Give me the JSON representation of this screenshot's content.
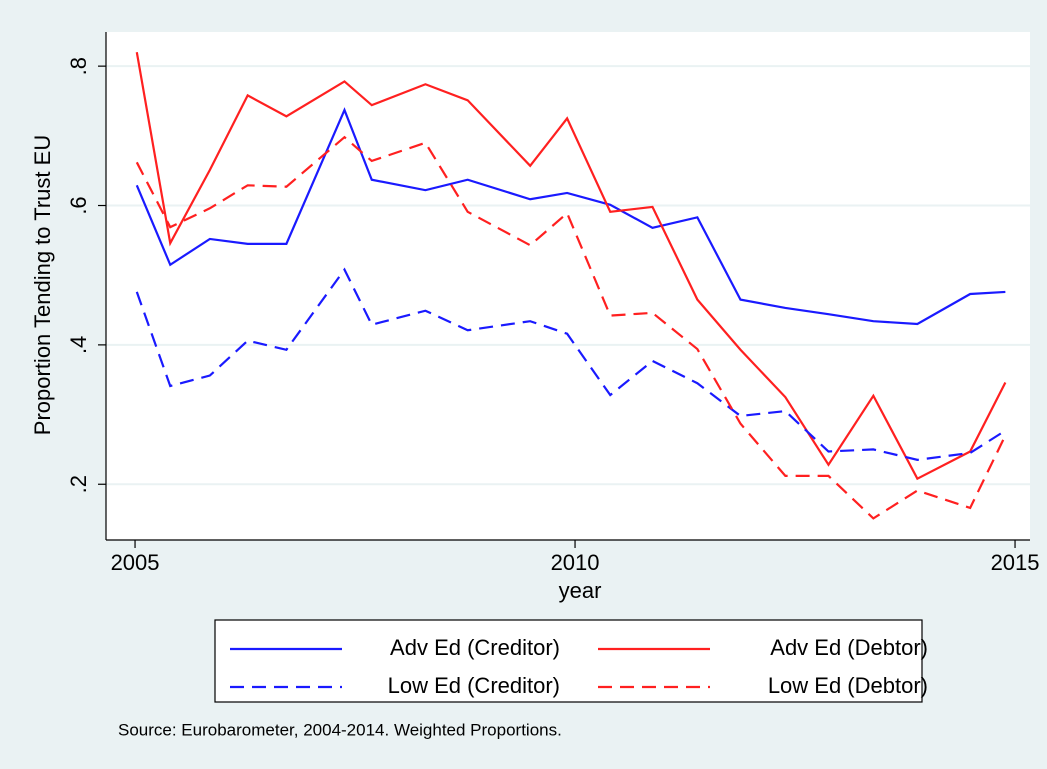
{
  "chart_data": {
    "type": "line",
    "x_label": "year",
    "y_label": "Proportion Tending to Trust EU",
    "note": "Source: Eurobarometer, 2004-2014. Weighted Proportions.",
    "x": [
      2005.02,
      2005.4,
      2005.85,
      2006.28,
      2006.72,
      2007.38,
      2007.69,
      2008.3,
      2008.78,
      2009.49,
      2009.91,
      2010.4,
      2010.88,
      2011.39,
      2011.88,
      2012.39,
      2012.88,
      2013.39,
      2013.89,
      2014.49,
      2014.89
    ],
    "series": [
      {
        "name": "Adv Ed (Creditor)",
        "color": "#1a1aff",
        "dash": false,
        "values": [
          0.629,
          0.515,
          0.552,
          0.545,
          0.545,
          0.737,
          0.637,
          0.622,
          0.637,
          0.609,
          0.618,
          0.601,
          0.568,
          0.583,
          0.465,
          0.453,
          0.444,
          0.434,
          0.43,
          0.473,
          0.476
        ]
      },
      {
        "name": "Adv Ed (Debtor)",
        "color": "#ff2020",
        "dash": false,
        "values": [
          0.82,
          0.546,
          0.651,
          0.758,
          0.728,
          0.778,
          0.744,
          0.774,
          0.751,
          0.657,
          0.725,
          0.591,
          0.598,
          0.465,
          0.393,
          0.325,
          0.228,
          0.327,
          0.208,
          0.247,
          0.346
        ]
      },
      {
        "name": "Low Ed (Creditor)",
        "color": "#1a1aff",
        "dash": true,
        "values": [
          0.476,
          0.341,
          0.356,
          0.406,
          0.393,
          0.508,
          0.429,
          0.449,
          0.421,
          0.434,
          0.416,
          0.328,
          0.377,
          0.345,
          0.298,
          0.305,
          0.247,
          0.25,
          0.235,
          0.245,
          0.277
        ]
      },
      {
        "name": "Low Ed (Debtor)",
        "color": "#ff2020",
        "dash": true,
        "values": [
          0.662,
          0.569,
          0.596,
          0.629,
          0.627,
          0.698,
          0.664,
          0.69,
          0.591,
          0.543,
          0.589,
          0.442,
          0.446,
          0.394,
          0.287,
          0.212,
          0.212,
          0.151,
          0.191,
          0.166,
          0.27
        ]
      }
    ],
    "xlim": [
      2004.67,
      2015.17
    ],
    "xticks": [
      2005,
      2010,
      2015
    ],
    "ylim": [
      0.12,
      0.849
    ],
    "yticks": [
      {
        "value": 0.2,
        "label": ".2"
      },
      {
        "value": 0.4,
        "label": ".4"
      },
      {
        "value": 0.6,
        "label": ".6"
      },
      {
        "value": 0.8,
        "label": ".8"
      }
    ],
    "grid": true
  }
}
